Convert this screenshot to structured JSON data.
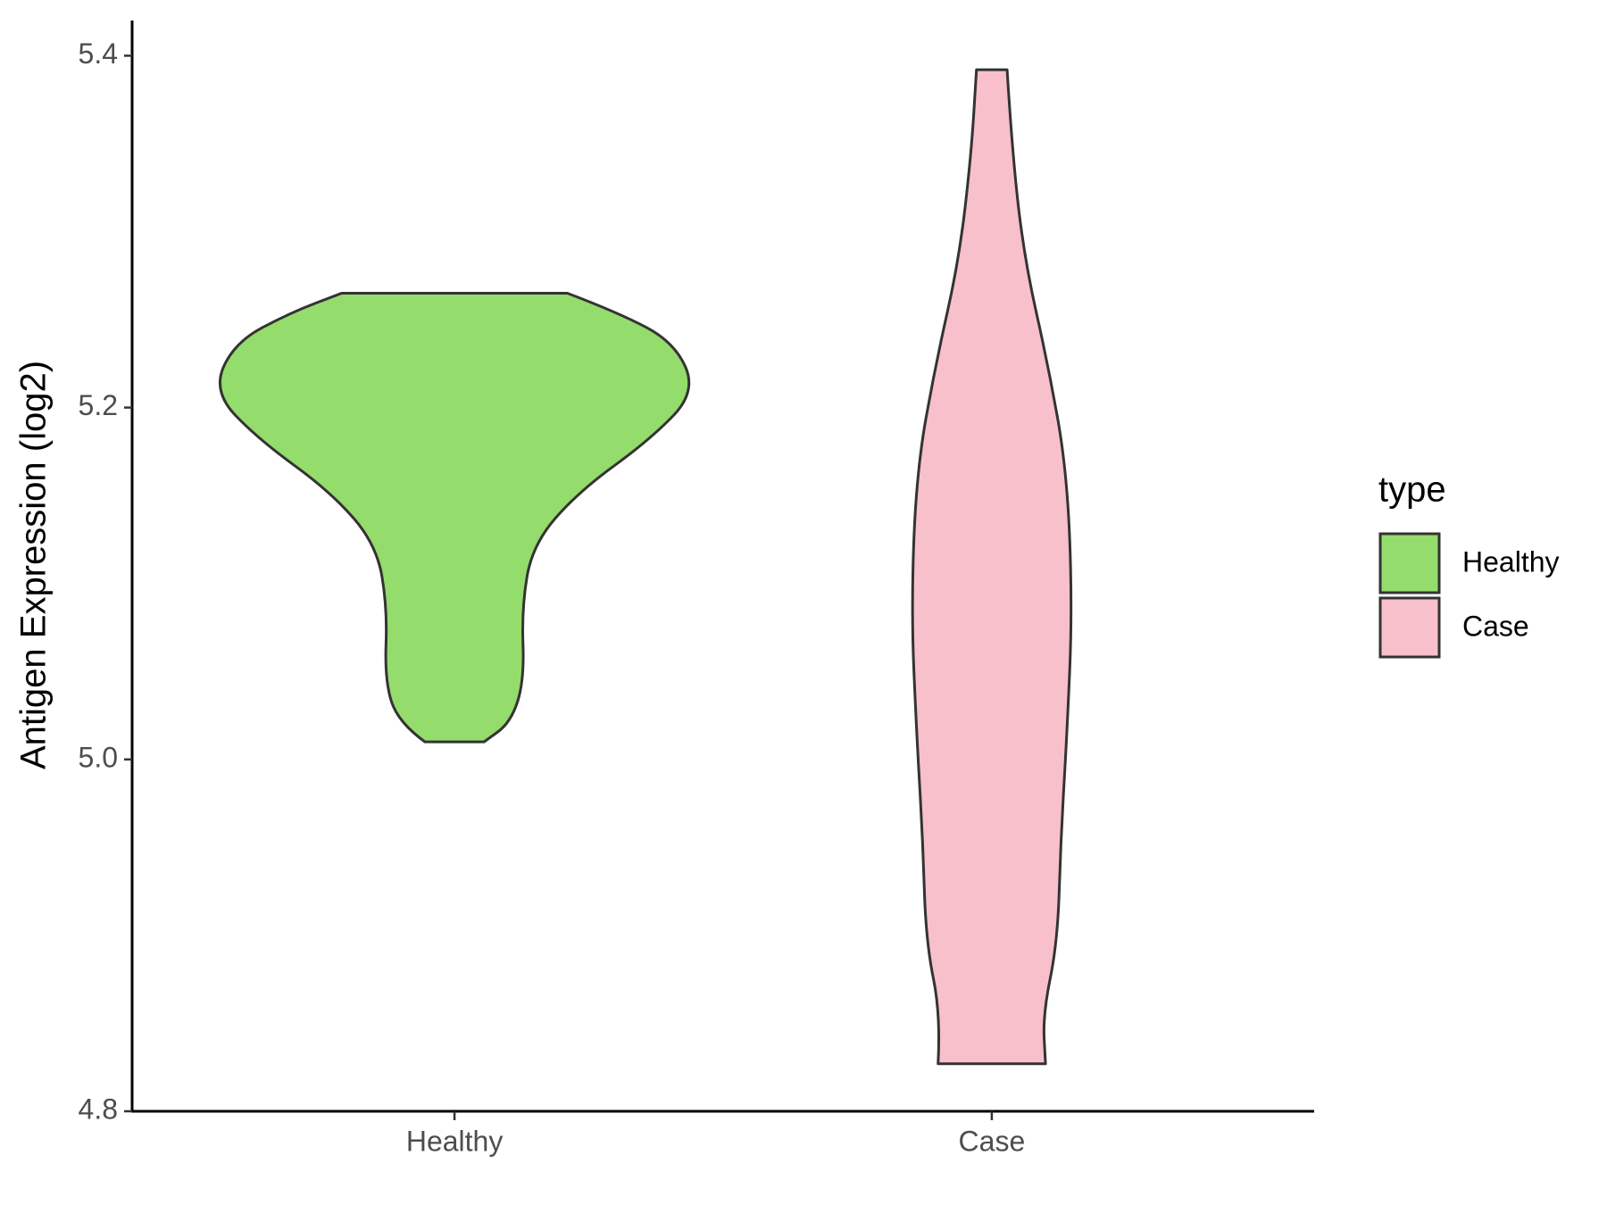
{
  "chart_data": {
    "type": "violin",
    "ylabel": "Antigen Expression (log2)",
    "categories": [
      "Healthy",
      "Case"
    ],
    "series": [
      {
        "name": "Healthy",
        "color": "#94dc6b",
        "y": [
          5.265,
          5.254,
          5.237,
          5.209,
          5.182,
          5.152,
          5.122,
          5.086,
          5.045,
          5.021,
          5.01
        ],
        "widths": [
          0.42,
          0.61,
          0.82,
          0.9,
          0.73,
          0.46,
          0.29,
          0.25,
          0.26,
          0.21,
          0.11
        ]
      },
      {
        "name": "Case",
        "color": "#f8c0cb",
        "y": [
          5.392,
          5.343,
          5.283,
          5.224,
          5.164,
          5.086,
          5.015,
          4.955,
          4.896,
          4.855,
          4.827
        ],
        "widths": [
          0.057,
          0.077,
          0.123,
          0.21,
          0.28,
          0.3,
          0.28,
          0.257,
          0.245,
          0.19,
          0.2
        ]
      }
    ],
    "ylim": [
      4.8,
      5.42
    ],
    "yticks": [
      4.8,
      {
        "value": 5,
        "label": "5.0"
      },
      5.2,
      5.4
    ],
    "legend_title": "type",
    "legend": "right"
  }
}
